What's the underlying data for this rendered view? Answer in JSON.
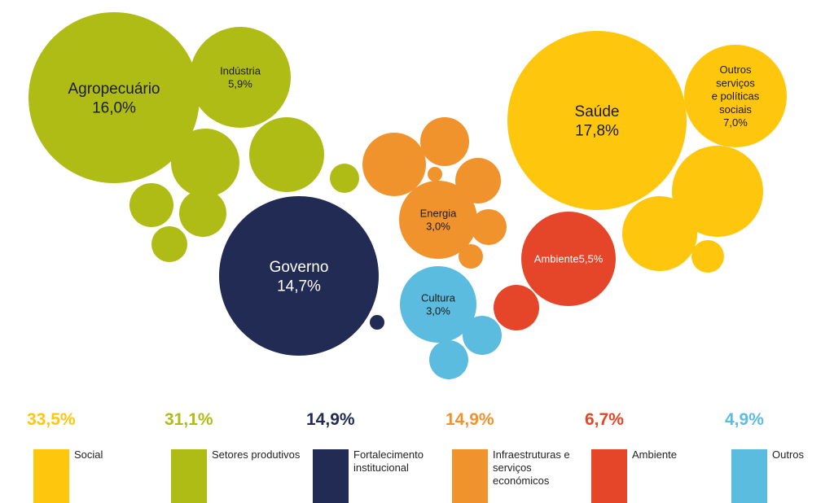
{
  "colors": {
    "social": "#FEC70E",
    "productive": "#B0BC16",
    "institutional": "#222B53",
    "infrastructure": "#F1932D",
    "environment": "#E5462A",
    "others": "#5CBCDF"
  },
  "chart_data": {
    "type": "bubble",
    "title": "",
    "bubbles": [
      {
        "label": "Agropecuário",
        "value": "16,0%",
        "group": "productive"
      },
      {
        "label": "Indústria",
        "value": "5,9%",
        "group": "productive"
      },
      {
        "label": "",
        "value": "",
        "group": "productive"
      },
      {
        "label": "",
        "value": "",
        "group": "productive"
      },
      {
        "label": "",
        "value": "",
        "group": "productive"
      },
      {
        "label": "",
        "value": "",
        "group": "productive"
      },
      {
        "label": "",
        "value": "",
        "group": "productive"
      },
      {
        "label": "",
        "value": "",
        "group": "productive"
      },
      {
        "label": "Governo",
        "value": "14,7%",
        "group": "institutional"
      },
      {
        "label": "",
        "value": "",
        "group": "institutional"
      },
      {
        "label": "Energia",
        "value": "3,0%",
        "group": "infrastructure"
      },
      {
        "label": "",
        "value": "",
        "group": "infrastructure"
      },
      {
        "label": "",
        "value": "",
        "group": "infrastructure"
      },
      {
        "label": "",
        "value": "",
        "group": "infrastructure"
      },
      {
        "label": "",
        "value": "",
        "group": "infrastructure"
      },
      {
        "label": "",
        "value": "",
        "group": "infrastructure"
      },
      {
        "label": "",
        "value": "",
        "group": "infrastructure"
      },
      {
        "label": "Ambiente",
        "value": "5,5%",
        "group": "environment"
      },
      {
        "label": "",
        "value": "",
        "group": "environment"
      },
      {
        "label": "Cultura",
        "value": "3,0%",
        "group": "others"
      },
      {
        "label": "",
        "value": "",
        "group": "others"
      },
      {
        "label": "",
        "value": "",
        "group": "others"
      },
      {
        "label": "Saúde",
        "value": "17,8%",
        "group": "social"
      },
      {
        "label": "Outros serviços e políticas sociais",
        "value": "7,0%",
        "group": "social"
      },
      {
        "label": "",
        "value": "",
        "group": "social"
      },
      {
        "label": "",
        "value": "",
        "group": "social"
      },
      {
        "label": "",
        "value": "",
        "group": "social"
      }
    ],
    "legend": [
      {
        "value": "33,5%",
        "label": "Social",
        "group": "social"
      },
      {
        "value": "31,1%",
        "label": "Setores produtivos",
        "group": "productive"
      },
      {
        "value": "14,9%",
        "label": "Fortalecimento institucional",
        "group": "institutional"
      },
      {
        "value": "14,9%",
        "label": "Infraestruturas e serviços económicos",
        "group": "infrastructure"
      },
      {
        "value": "6,7%",
        "label": "Ambiente",
        "group": "environment"
      },
      {
        "value": "4,9%",
        "label": "Outros",
        "group": "others"
      }
    ]
  }
}
